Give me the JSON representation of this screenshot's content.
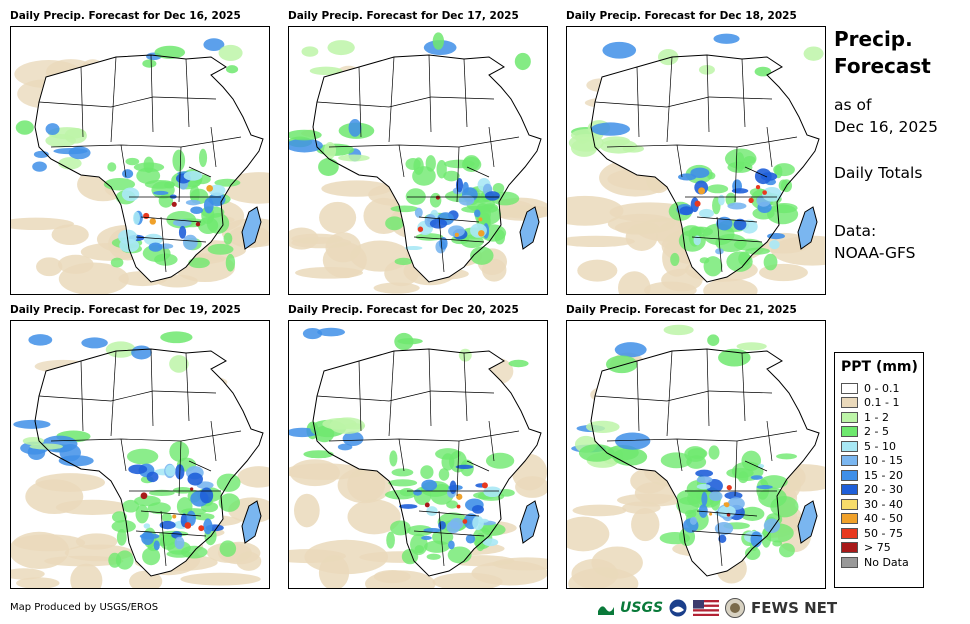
{
  "panels": [
    {
      "title": "Daily Precip. Forecast for Dec 16, 2025"
    },
    {
      "title": "Daily Precip. Forecast for Dec 17, 2025"
    },
    {
      "title": "Daily Precip. Forecast for Dec 18, 2025"
    },
    {
      "title": "Daily Precip. Forecast for Dec 19, 2025"
    },
    {
      "title": "Daily Precip. Forecast for Dec 20, 2025"
    },
    {
      "title": "Daily Precip. Forecast for Dec 21, 2025"
    }
  ],
  "sidebar": {
    "title_line1": "Precip.",
    "title_line2": "Forecast",
    "as_of_label": "as of",
    "as_of_date": "Dec 16, 2025",
    "totals_label": "Daily Totals",
    "data_label": "Data:",
    "data_source": "NOAA-GFS"
  },
  "legend": {
    "title": "PPT (mm)",
    "items": [
      {
        "label": "0 - 0.1",
        "color": "#ffffff"
      },
      {
        "label": "0.1 - 1",
        "color": "#ead9bb"
      },
      {
        "label": "1 - 2",
        "color": "#bdf5a8"
      },
      {
        "label": "2 - 5",
        "color": "#6ee86e"
      },
      {
        "label": "5 - 10",
        "color": "#a8e8f5"
      },
      {
        "label": "10 - 15",
        "color": "#7ab6f0"
      },
      {
        "label": "15 - 20",
        "color": "#3f8fe8"
      },
      {
        "label": "20 - 30",
        "color": "#1f5fd9"
      },
      {
        "label": "30 - 40",
        "color": "#f7dc6a"
      },
      {
        "label": "40 - 50",
        "color": "#f0a12a"
      },
      {
        "label": "50 - 75",
        "color": "#e8391f"
      },
      {
        "label": "> 75",
        "color": "#a81a1a"
      },
      {
        "label": "No Data",
        "color": "#999999"
      }
    ]
  },
  "footer": {
    "credit": "Map Produced by USGS/EROS",
    "usgs": "USGS",
    "fews": "FEWS NET"
  }
}
